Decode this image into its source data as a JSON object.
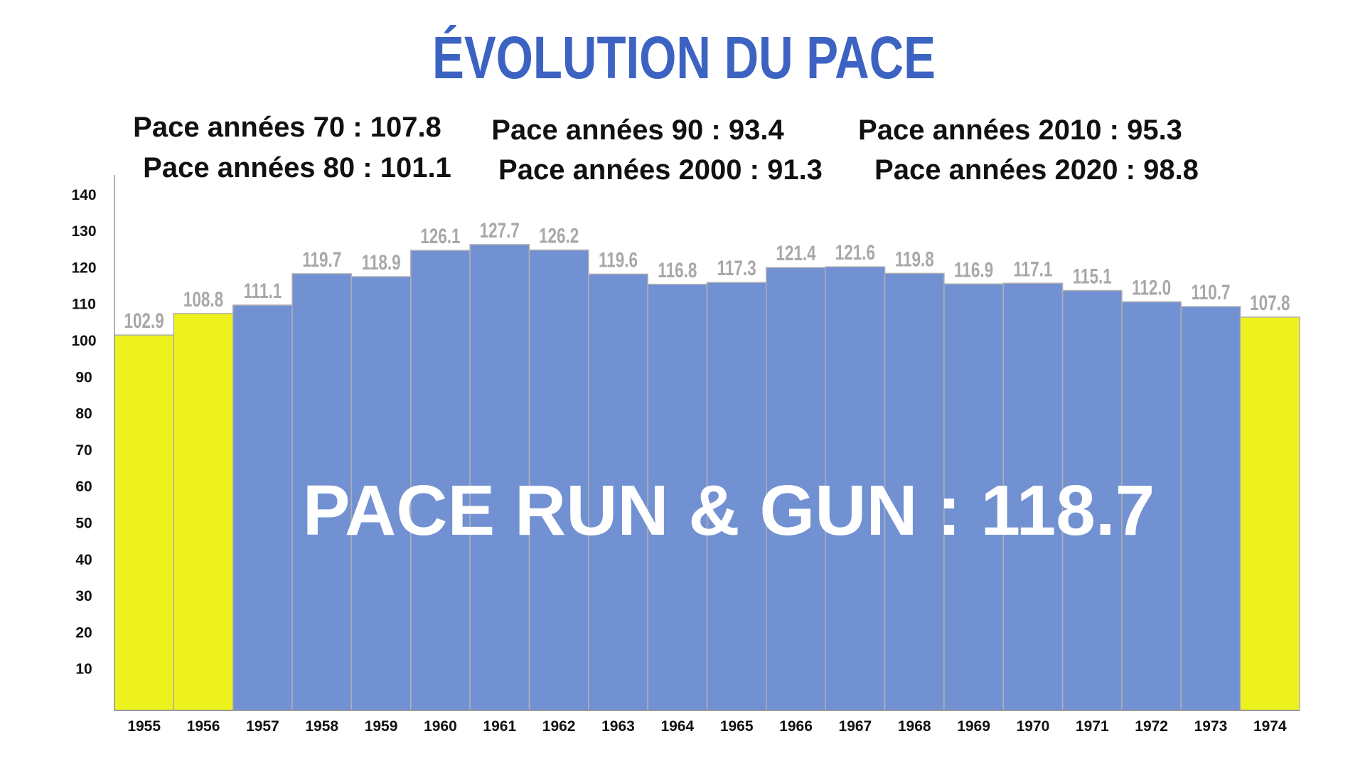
{
  "chart_data": {
    "type": "bar",
    "title": "ÉVOLUTION DU PACE",
    "categories": [
      "1955",
      "1956",
      "1957",
      "1958",
      "1959",
      "1960",
      "1961",
      "1962",
      "1963",
      "1964",
      "1965",
      "1966",
      "1967",
      "1968",
      "1969",
      "1970",
      "1971",
      "1972",
      "1973",
      "1974"
    ],
    "values": [
      102.9,
      108.8,
      111.1,
      119.7,
      118.9,
      126.1,
      127.7,
      126.2,
      119.6,
      116.8,
      117.3,
      121.4,
      121.6,
      119.8,
      116.9,
      117.1,
      115.1,
      112.0,
      110.7,
      107.8
    ],
    "highlighted": [
      "1955",
      "1956",
      "1974"
    ],
    "yticks": [
      10,
      20,
      30,
      40,
      50,
      60,
      70,
      80,
      90,
      100,
      110,
      120,
      130,
      140
    ],
    "ylim": [
      0,
      140
    ],
    "xlabel": "",
    "ylabel": "",
    "grid": false,
    "annotations": [
      "Pace années 70 : 107.8",
      "Pace années 80 : 101.1",
      "Pace années 90 : 93.4",
      "Pace années 2000 : 91.3",
      "Pace années 2010 : 95.3",
      "Pace années 2020 : 98.8"
    ],
    "overlay_text": "PACE RUN & GUN : 118.7",
    "colors": {
      "bar": "#7291d2",
      "highlight": "#eef21c",
      "title": "#3d63c2",
      "value_label": "#a8a8a8"
    }
  }
}
